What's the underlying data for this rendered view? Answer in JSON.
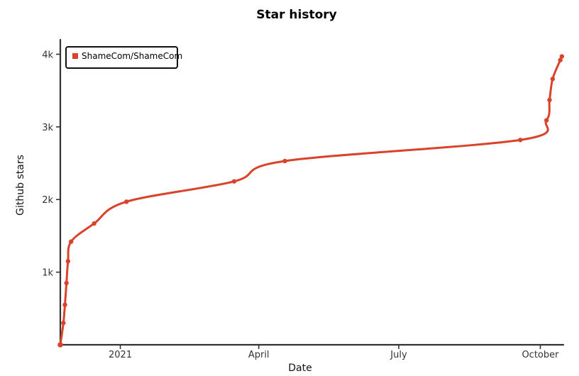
{
  "chart_data": {
    "type": "line",
    "title": "Star history",
    "xlabel": "Date",
    "ylabel": "Github stars",
    "x_ticks": [
      {
        "label": "2021",
        "date": "2021-01-01"
      },
      {
        "label": "April",
        "date": "2021-04-01"
      },
      {
        "label": "July",
        "date": "2021-07-01"
      },
      {
        "label": "October",
        "date": "2021-10-01"
      }
    ],
    "y_ticks": [
      {
        "label": "1k",
        "value": 1000
      },
      {
        "label": "2k",
        "value": 2000
      },
      {
        "label": "3k",
        "value": 3000
      },
      {
        "label": "4k",
        "value": 4000
      }
    ],
    "xlim": [
      "2020-11-23",
      "2021-10-16"
    ],
    "ylim": [
      0,
      4200
    ],
    "grid": false,
    "legend_position": "top-left",
    "series": [
      {
        "name": "ShameCom/ShameCom",
        "color": "#d9432a",
        "points": [
          {
            "x": "2020-11-23",
            "y": 0
          },
          {
            "x": "2020-11-25",
            "y": 300
          },
          {
            "x": "2020-11-26",
            "y": 550
          },
          {
            "x": "2020-11-27",
            "y": 850
          },
          {
            "x": "2020-11-28",
            "y": 1150
          },
          {
            "x": "2020-11-30",
            "y": 1420
          },
          {
            "x": "2020-12-15",
            "y": 1670
          },
          {
            "x": "2021-01-05",
            "y": 1970
          },
          {
            "x": "2021-03-16",
            "y": 2250
          },
          {
            "x": "2021-04-18",
            "y": 2530
          },
          {
            "x": "2021-09-18",
            "y": 2820
          },
          {
            "x": "2021-10-05",
            "y": 3090
          },
          {
            "x": "2021-10-07",
            "y": 3370
          },
          {
            "x": "2021-10-09",
            "y": 3660
          },
          {
            "x": "2021-10-14",
            "y": 3920
          },
          {
            "x": "2021-10-15",
            "y": 3970
          }
        ]
      }
    ]
  }
}
